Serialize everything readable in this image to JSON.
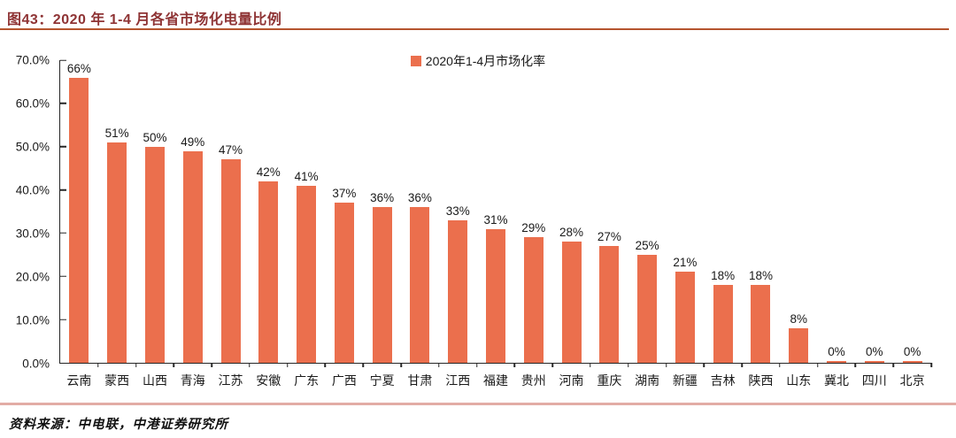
{
  "header": {
    "title": "图43：2020 年 1-4 月各省市场化电量比例"
  },
  "legend": {
    "label": "2020年1-4月市场化率"
  },
  "footer": {
    "source": "资料来源：中电联，中港证券研究所"
  },
  "colors": {
    "bar": "#eb6f4d",
    "title_text": "#8e3334",
    "title_rule": "#b5542e",
    "footer_rule": "#e2aca5",
    "axis": "#262626"
  },
  "chart_data": {
    "type": "bar",
    "title": "2020 年 1-4 月各省市场化电量比例",
    "legend": [
      "2020年1-4月市场化率"
    ],
    "legend_position": "top-center",
    "categories": [
      "云南",
      "蒙西",
      "山西",
      "青海",
      "江苏",
      "安徽",
      "广东",
      "广西",
      "宁夏",
      "甘肃",
      "江西",
      "福建",
      "贵州",
      "河南",
      "重庆",
      "湖南",
      "新疆",
      "吉林",
      "陕西",
      "山东",
      "冀北",
      "四川",
      "北京"
    ],
    "values": [
      66,
      51,
      50,
      49,
      47,
      42,
      41,
      37,
      36,
      36,
      33,
      31,
      29,
      28,
      27,
      25,
      21,
      18,
      18,
      8,
      0,
      0,
      0
    ],
    "value_label_suffix": "%",
    "xlabel": "",
    "ylabel": "",
    "ylim": [
      0,
      70
    ],
    "ytick_step": 10,
    "ytick_labels": [
      "0.0%",
      "10.0%",
      "20.0%",
      "30.0%",
      "40.0%",
      "50.0%",
      "60.0%",
      "70.0%"
    ],
    "grid": false
  }
}
